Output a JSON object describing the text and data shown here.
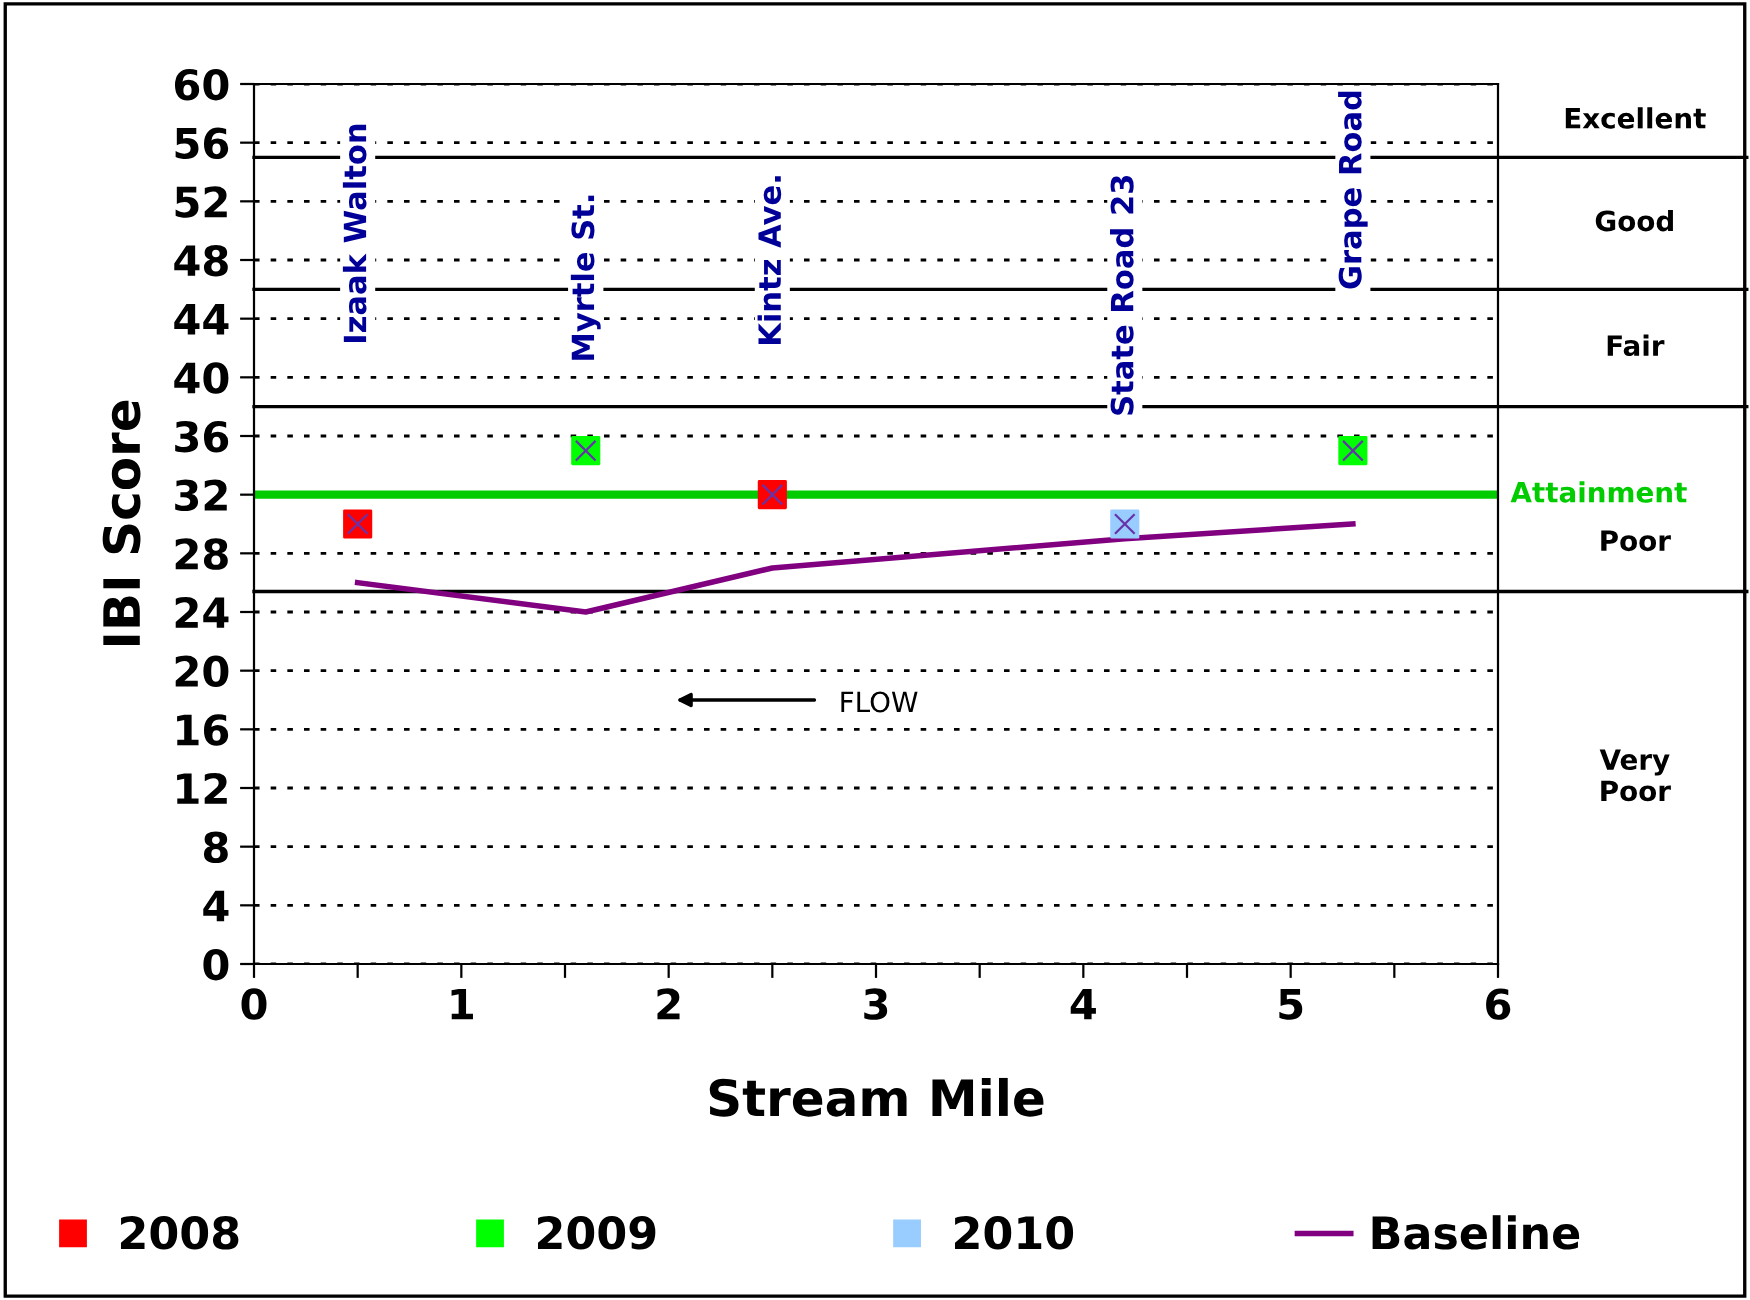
{
  "chart_data": {
    "type": "scatter",
    "xlabel": "Stream Mile",
    "ylabel": "IBI Score",
    "xlim": [
      0,
      6
    ],
    "ylim": [
      0,
      60
    ],
    "xticks": [
      0,
      {
        "value": 0.5,
        "label": null
      },
      1,
      {
        "value": 1.5,
        "label": null
      },
      2,
      {
        "value": 2.5,
        "label": null
      },
      3,
      {
        "value": 3.5,
        "label": null
      },
      4,
      {
        "value": 4.5,
        "label": null
      },
      5,
      {
        "value": 5.5,
        "label": null
      },
      6
    ],
    "yticks": [
      0,
      4,
      8,
      12,
      16,
      20,
      24,
      28,
      32,
      36,
      40,
      44,
      48,
      52,
      56,
      60
    ],
    "grid": "y",
    "legend": "bottom",
    "marker": "square",
    "series": [
      {
        "name": "2008",
        "color": "#ff0000",
        "x": [
          0.5,
          2.5
        ],
        "values": [
          30,
          32
        ]
      },
      {
        "name": "2009",
        "color": "#00ff00",
        "x": [
          1.6,
          5.3
        ],
        "values": [
          35,
          35
        ]
      },
      {
        "name": "2010",
        "color": "#99ccff",
        "x": [
          4.2
        ],
        "values": [
          30
        ]
      },
      {
        "name": "Baseline",
        "type": "line",
        "color": "#800080",
        "marker": "none",
        "x": [
          0.5,
          1.6,
          2.5,
          4.2,
          5.3
        ],
        "values": [
          26,
          24,
          27,
          29,
          30
        ]
      }
    ],
    "ref_lines": [
      {
        "axis": "y",
        "value": 32,
        "label": "Attainment",
        "color": "#00cc00"
      },
      {
        "axis": "y",
        "value": 55,
        "label": "Excellent",
        "color": "#000000"
      },
      {
        "axis": "y",
        "value": 46,
        "label": "Good",
        "color": "#000000"
      },
      {
        "axis": "y",
        "value": 38,
        "label": "Fair",
        "color": "#000000"
      },
      {
        "axis": "y",
        "value": 25.4,
        "label": "Poor",
        "color": "#000000"
      }
    ],
    "annotations": [
      "Izaak Walton",
      "Myrtle St.",
      "Kintz Ave.",
      "State Road 23",
      "Grape Road",
      "FLOW",
      "Very\nPoor"
    ]
  }
}
